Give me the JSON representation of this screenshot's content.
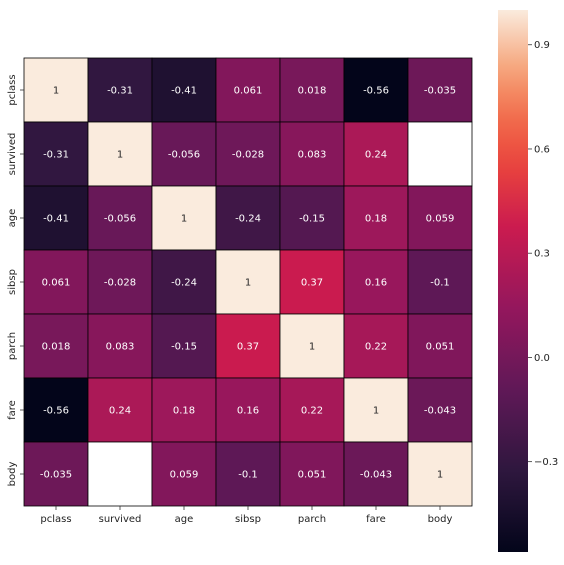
{
  "chart_data": {
    "type": "heatmap",
    "title": "",
    "xlabel": "",
    "ylabel": "",
    "x_labels": [
      "pclass",
      "survived",
      "age",
      "sibsp",
      "parch",
      "fare",
      "body"
    ],
    "y_labels": [
      "pclass",
      "survived",
      "age",
      "sibsp",
      "parch",
      "fare",
      "body"
    ],
    "values": [
      [
        1,
        -0.31,
        -0.41,
        0.061,
        0.018,
        -0.56,
        -0.035
      ],
      [
        -0.31,
        1,
        -0.056,
        -0.028,
        0.083,
        0.24,
        null
      ],
      [
        -0.41,
        -0.056,
        1,
        -0.24,
        -0.15,
        0.18,
        0.059
      ],
      [
        0.061,
        -0.028,
        -0.24,
        1,
        0.37,
        0.16,
        -0.1
      ],
      [
        0.018,
        0.083,
        -0.15,
        0.37,
        1,
        0.22,
        0.051
      ],
      [
        -0.56,
        0.24,
        0.18,
        0.16,
        0.22,
        1,
        -0.043
      ],
      [
        -0.035,
        null,
        0.059,
        -0.1,
        0.051,
        -0.043,
        1
      ]
    ],
    "colorbar": {
      "vmin": -0.56,
      "vmax": 1,
      "ticks": [
        -0.3,
        0.0,
        0.3,
        0.6,
        0.9
      ],
      "tick_labels": [
        "−0.3",
        "0.0",
        "0.3",
        "0.6",
        "0.9"
      ],
      "placement": "right",
      "colormap": "rocket"
    },
    "missing_color": "#ffffff",
    "cell_border_color": "#000000",
    "annotations": true
  }
}
